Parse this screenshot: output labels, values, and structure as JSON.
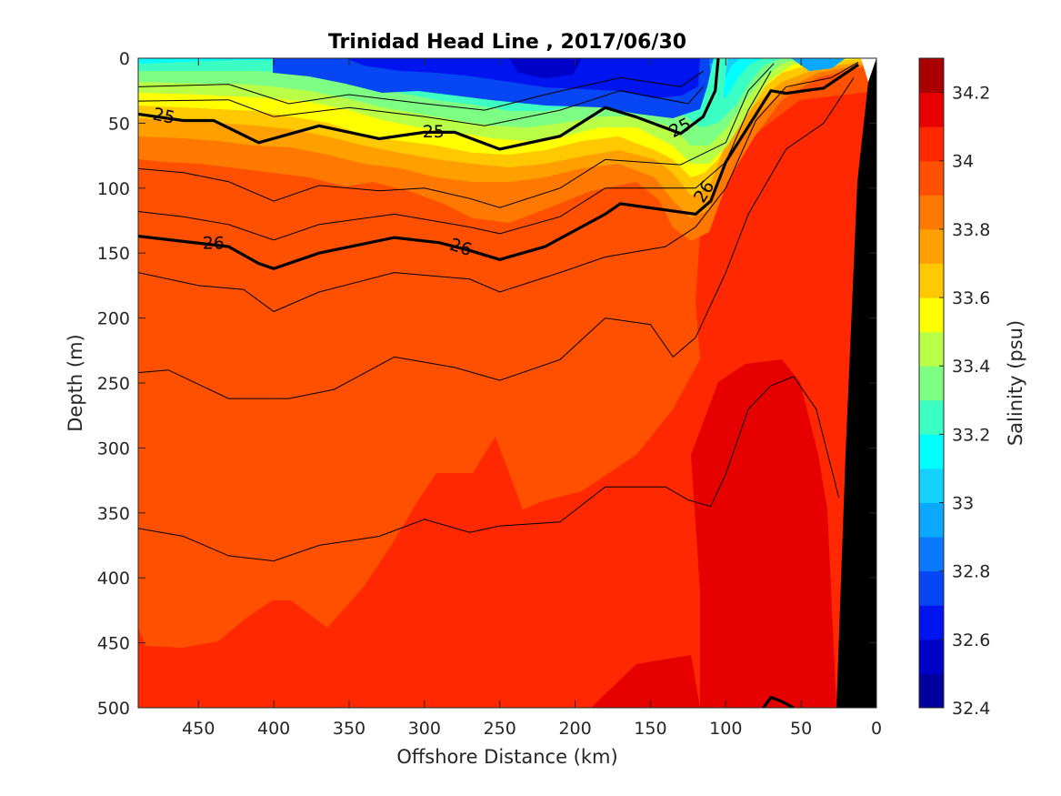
{
  "chart_data": {
    "type": "heatmap",
    "title": "Trinidad Head Line , 2017/06/30",
    "xlabel": "Offshore Distance (km)",
    "ylabel": "Depth (m)",
    "xlim": [
      490,
      0
    ],
    "ylim": [
      500,
      0
    ],
    "x_reversed": true,
    "y_reversed": true,
    "x_ticks": [
      "450",
      "400",
      "350",
      "300",
      "250",
      "200",
      "150",
      "100",
      "50",
      "0"
    ],
    "y_ticks": [
      "0",
      "50",
      "100",
      "150",
      "200",
      "250",
      "300",
      "350",
      "400",
      "450",
      "500"
    ],
    "colorbar": {
      "label": "Salinity (psu)",
      "range": [
        32.4,
        34.3
      ],
      "ticks": [
        "32.4",
        "32.6",
        "32.8",
        "33",
        "33.2",
        "33.4",
        "33.6",
        "33.8",
        "34",
        "34.2"
      ],
      "levels": [
        32.4,
        32.5,
        32.6,
        32.7,
        32.8,
        32.9,
        33.0,
        33.1,
        33.2,
        33.3,
        33.4,
        33.5,
        33.6,
        33.7,
        33.8,
        33.9,
        34.0,
        34.1,
        34.2,
        34.3
      ],
      "colors": [
        "#00009f",
        "#0000c8",
        "#0014f0",
        "#0646f5",
        "#0a78ff",
        "#0aa8ff",
        "#14d2ff",
        "#00ffff",
        "#3cffc3",
        "#7cff82",
        "#b9ff47",
        "#ffff00",
        "#ffc800",
        "#ffa000",
        "#ff7800",
        "#ff5000",
        "#ff2800",
        "#e60000",
        "#aa0000"
      ]
    },
    "isopycnals": [
      {
        "label": "25",
        "points": [
          [
            490,
            43
          ],
          [
            460,
            48
          ],
          [
            440,
            48
          ],
          [
            410,
            65
          ],
          [
            370,
            52
          ],
          [
            330,
            62
          ],
          [
            300,
            57
          ],
          [
            280,
            57
          ],
          [
            250,
            70
          ],
          [
            210,
            60
          ],
          [
            180,
            38
          ],
          [
            160,
            45
          ],
          [
            130,
            58
          ],
          [
            115,
            45
          ],
          [
            107,
            25
          ],
          [
            105,
            0
          ]
        ]
      },
      {
        "label": "26",
        "points": [
          [
            490,
            137
          ],
          [
            430,
            145
          ],
          [
            410,
            158
          ],
          [
            400,
            162
          ],
          [
            370,
            150
          ],
          [
            320,
            138
          ],
          [
            290,
            142
          ],
          [
            270,
            148
          ],
          [
            250,
            155
          ],
          [
            220,
            145
          ],
          [
            180,
            120
          ],
          [
            170,
            112
          ],
          [
            120,
            120
          ],
          [
            110,
            110
          ],
          [
            100,
            80
          ],
          [
            70,
            25
          ],
          [
            60,
            27
          ],
          [
            35,
            23
          ],
          [
            12,
            5
          ]
        ]
      },
      {
        "label": "",
        "points": [
          [
            75,
            500
          ],
          [
            70,
            492
          ],
          [
            63,
            495
          ],
          [
            55,
            500
          ]
        ]
      }
    ],
    "sigma_lines": [
      [
        [
          490,
          22
        ],
        [
          430,
          20
        ],
        [
          390,
          35
        ],
        [
          350,
          28
        ],
        [
          300,
          35
        ],
        [
          260,
          40
        ],
        [
          220,
          28
        ],
        [
          170,
          15
        ],
        [
          130,
          22
        ],
        [
          115,
          10
        ]
      ],
      [
        [
          490,
          33
        ],
        [
          430,
          32
        ],
        [
          400,
          45
        ],
        [
          350,
          38
        ],
        [
          300,
          45
        ],
        [
          260,
          52
        ],
        [
          210,
          40
        ],
        [
          170,
          25
        ],
        [
          125,
          35
        ],
        [
          115,
          22
        ]
      ],
      [
        [
          490,
          85
        ],
        [
          460,
          88
        ],
        [
          430,
          95
        ],
        [
          400,
          110
        ],
        [
          370,
          98
        ],
        [
          330,
          102
        ],
        [
          300,
          100
        ],
        [
          270,
          108
        ],
        [
          250,
          115
        ],
        [
          210,
          100
        ],
        [
          180,
          78
        ],
        [
          130,
          82
        ],
        [
          100,
          65
        ],
        [
          85,
          25
        ],
        [
          68,
          4
        ]
      ],
      [
        [
          490,
          118
        ],
        [
          460,
          122
        ],
        [
          430,
          128
        ],
        [
          400,
          140
        ],
        [
          370,
          128
        ],
        [
          320,
          120
        ],
        [
          270,
          130
        ],
        [
          250,
          135
        ],
        [
          210,
          122
        ],
        [
          180,
          100
        ],
        [
          120,
          100
        ],
        [
          100,
          80
        ],
        [
          85,
          40
        ],
        [
          70,
          10
        ]
      ],
      [
        [
          490,
          165
        ],
        [
          450,
          175
        ],
        [
          420,
          178
        ],
        [
          400,
          195
        ],
        [
          370,
          180
        ],
        [
          320,
          165
        ],
        [
          270,
          170
        ],
        [
          250,
          180
        ],
        [
          210,
          165
        ],
        [
          180,
          153
        ],
        [
          140,
          145
        ],
        [
          120,
          130
        ],
        [
          100,
          100
        ],
        [
          80,
          48
        ],
        [
          60,
          22
        ],
        [
          30,
          15
        ],
        [
          12,
          3
        ]
      ],
      [
        [
          490,
          242
        ],
        [
          470,
          240
        ],
        [
          430,
          262
        ],
        [
          390,
          262
        ],
        [
          360,
          255
        ],
        [
          320,
          230
        ],
        [
          280,
          238
        ],
        [
          250,
          248
        ],
        [
          210,
          232
        ],
        [
          180,
          200
        ],
        [
          150,
          205
        ],
        [
          135,
          230
        ],
        [
          120,
          215
        ],
        [
          100,
          165
        ],
        [
          85,
          120
        ],
        [
          60,
          70
        ],
        [
          35,
          50
        ],
        [
          15,
          15
        ]
      ],
      [
        [
          490,
          362
        ],
        [
          460,
          368
        ],
        [
          430,
          383
        ],
        [
          400,
          387
        ],
        [
          370,
          375
        ],
        [
          330,
          368
        ],
        [
          300,
          355
        ],
        [
          270,
          365
        ],
        [
          250,
          360
        ],
        [
          210,
          357
        ],
        [
          180,
          330
        ],
        [
          140,
          330
        ],
        [
          125,
          340
        ],
        [
          110,
          345
        ],
        [
          100,
          320
        ],
        [
          85,
          270
        ],
        [
          70,
          252
        ],
        [
          55,
          245
        ],
        [
          40,
          270
        ],
        [
          25,
          338
        ]
      ]
    ]
  }
}
